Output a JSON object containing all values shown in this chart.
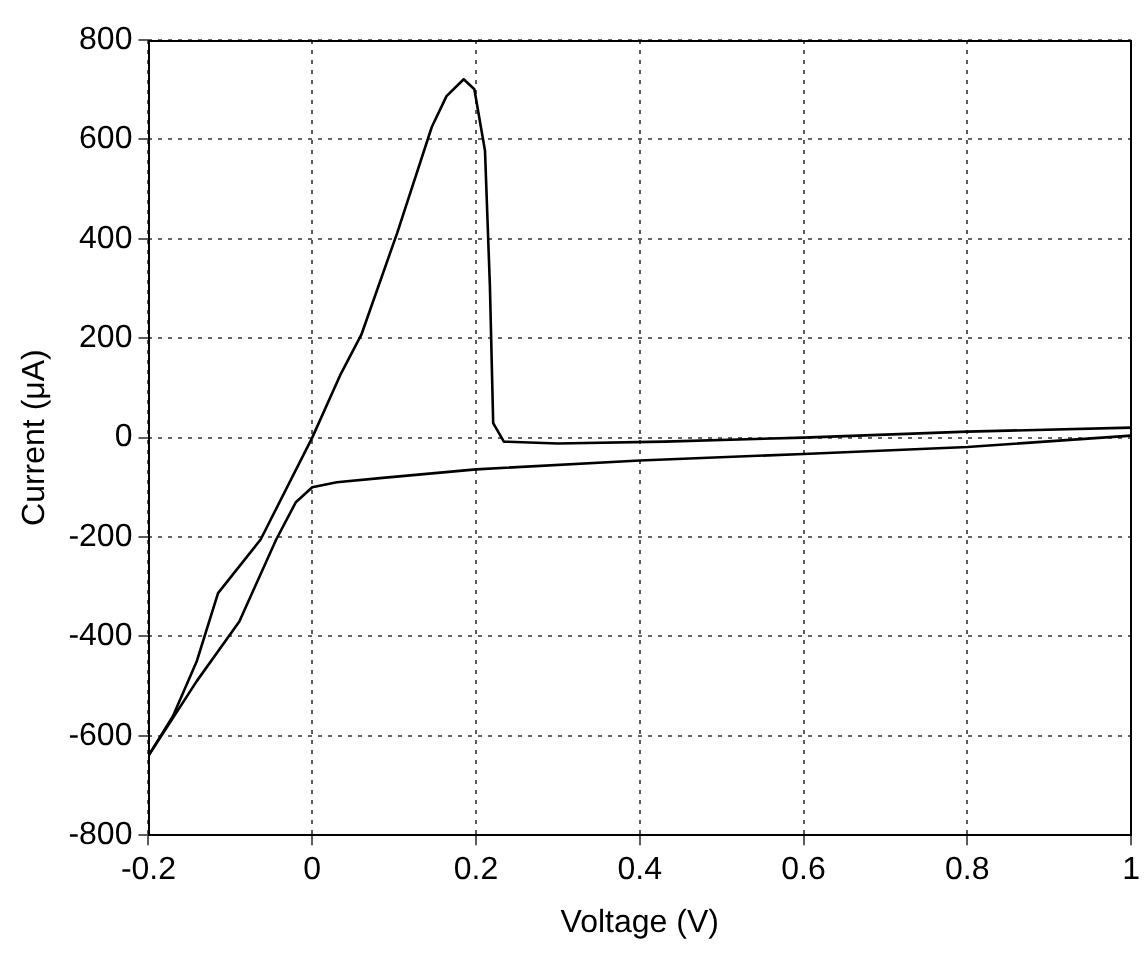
{
  "chart_data": {
    "type": "line",
    "xlabel": "Voltage (V)",
    "ylabel": "Current (μA)",
    "xlim": [
      -0.2,
      1
    ],
    "xticks": [
      -0.2,
      0,
      0.2,
      0.4,
      0.6,
      0.8,
      1
    ],
    "ylim": [
      -800,
      800
    ],
    "yticks": [
      -800,
      -600,
      -400,
      -200,
      0,
      200,
      400,
      600,
      800
    ],
    "grid": true,
    "legend": false,
    "marker": "none",
    "line_style": "solid",
    "series": [
      {
        "color": "#000000",
        "x": [
          -0.2,
          -0.17,
          -0.141,
          -0.115,
          -0.063,
          0,
          0.034,
          0.06,
          0.104,
          0.146,
          0.164,
          0.185,
          0.198,
          0.211,
          0.217,
          0.221,
          0.234,
          0.3,
          0.43,
          0.6,
          0.8,
          1.0
        ],
        "values": [
          -640,
          -560,
          -450,
          -313,
          -205,
          0,
          125,
          207,
          413,
          625,
          687,
          721,
          701,
          577,
          304,
          29,
          -8,
          -12,
          -8,
          0,
          12,
          20
        ]
      },
      {
        "color": "#000000",
        "x": [
          -0.2,
          -0.141,
          -0.089,
          -0.044,
          -0.02,
          0,
          0.03,
          0.086,
          0.2,
          0.4,
          0.6,
          0.8,
          1.0
        ],
        "values": [
          -640,
          -490,
          -370,
          -205,
          -130,
          -100,
          -90,
          -81,
          -64,
          -46,
          -33,
          -19,
          4
        ]
      }
    ]
  }
}
